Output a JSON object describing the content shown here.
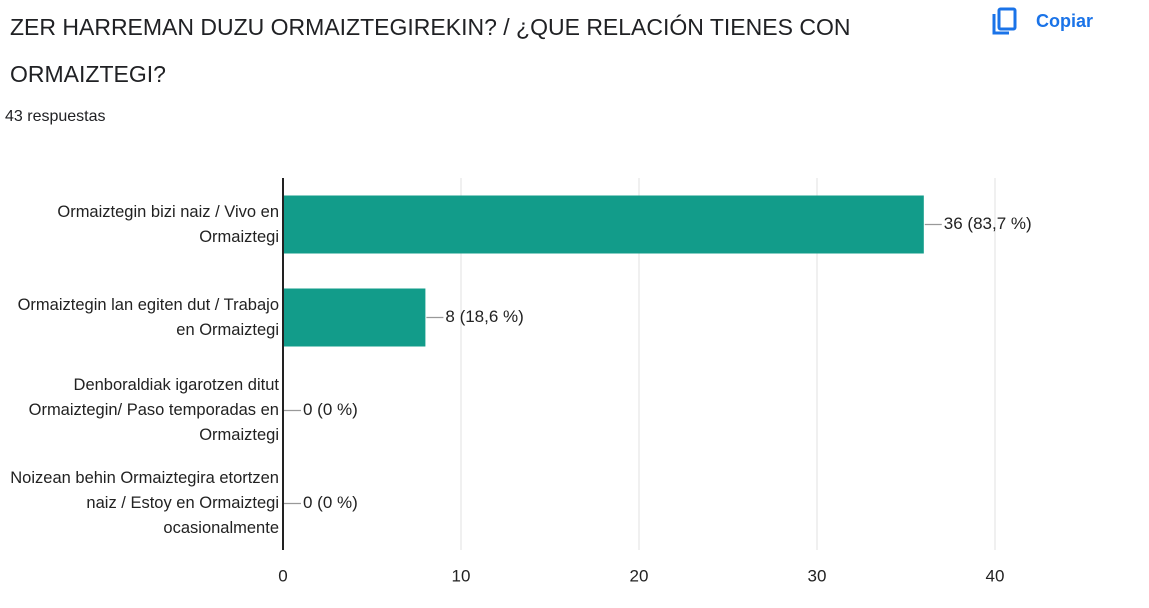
{
  "chart_data": {
    "type": "bar",
    "orientation": "horizontal",
    "title": "ZER HARREMAN DUZU ORMAIZTEGIREKIN? / ¿QUE RELACIÓN TIENES CON ORMAIZTEGI?",
    "subtitle": "43 respuestas",
    "button": "Copiar",
    "categories": [
      "Ormaiztegin bizi naiz / Vivo en Ormaiztegi",
      "Ormaiztegin lan egiten dut / Trabajo en Ormaiztegi",
      "Denboraldiak igarotzen ditut Ormaiztegin/ Paso temporadas en Ormaiztegi",
      "Noizean behin Ormaiztegira etortzen naiz / Estoy en Ormaiztegi ocasionalmente"
    ],
    "values": [
      36,
      8,
      0,
      0
    ],
    "value_labels": [
      "36 (83,7 %)",
      "8 (18,6 %)",
      "0 (0 %)",
      "0 (0 %)"
    ],
    "color": "#129c8a",
    "xlim": [
      0,
      40
    ],
    "xticks": [
      0,
      10,
      20,
      30,
      40
    ],
    "grid": true
  }
}
